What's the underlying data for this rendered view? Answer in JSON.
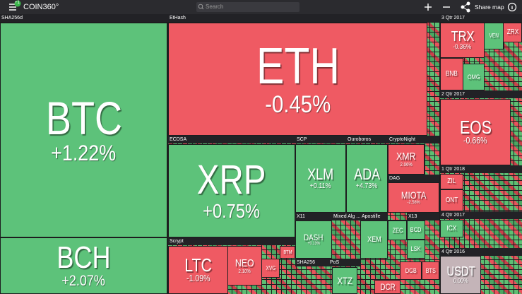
{
  "header": {
    "badge": "+1",
    "logo": "COIN360°",
    "search_placeholder": "Search",
    "share": "Share map"
  },
  "groups": [
    "SHA256d",
    "EtHash",
    "ECDSA",
    "SCP",
    "Ouroboros",
    "CryptoNight",
    "DAG",
    "X11",
    "Mixed Alg ...",
    "Apostille",
    "X13",
    "Scrypt",
    "SHA256",
    "PoS",
    "3 Qtr 2017",
    "2 Qtr 2017",
    "1 Qtr 2018",
    "4 Qtr 2017",
    "4 Qtr 2016"
  ],
  "tiles": [
    {
      "symbol": "BTC",
      "change": "+1.22%"
    },
    {
      "symbol": "BCH",
      "change": "+2.07%"
    },
    {
      "symbol": "ETH",
      "change": "-0.45%"
    },
    {
      "symbol": "XRP",
      "change": "+0.75%"
    },
    {
      "symbol": "XLM",
      "change": "+0.11%"
    },
    {
      "symbol": "ADA",
      "change": "+4.73%"
    },
    {
      "symbol": "XMR",
      "change": "2.06%"
    },
    {
      "symbol": "MIOTA",
      "change": "-2.58%"
    },
    {
      "symbol": "DASH",
      "change": "+0.13%"
    },
    {
      "symbol": "XEM"
    },
    {
      "symbol": "ZEC"
    },
    {
      "symbol": "BCD"
    },
    {
      "symbol": "LSK"
    },
    {
      "symbol": "LTC",
      "change": "-1.09%"
    },
    {
      "symbol": "NEO",
      "change": "2.10%"
    },
    {
      "symbol": "XVG"
    },
    {
      "symbol": "BTM"
    },
    {
      "symbol": "XTZ"
    },
    {
      "symbol": "DCR"
    },
    {
      "symbol": "DGB"
    },
    {
      "symbol": "BTS"
    },
    {
      "symbol": "TRX",
      "change": "-0.36%"
    },
    {
      "symbol": "VEN"
    },
    {
      "symbol": "ZRX"
    },
    {
      "symbol": "BNB"
    },
    {
      "symbol": "OMG"
    },
    {
      "symbol": "EOS",
      "change": "-0.66%"
    },
    {
      "symbol": "ZIL"
    },
    {
      "symbol": "ONT"
    },
    {
      "symbol": "ICX"
    },
    {
      "symbol": "USDT",
      "change": "0.00%"
    }
  ]
}
